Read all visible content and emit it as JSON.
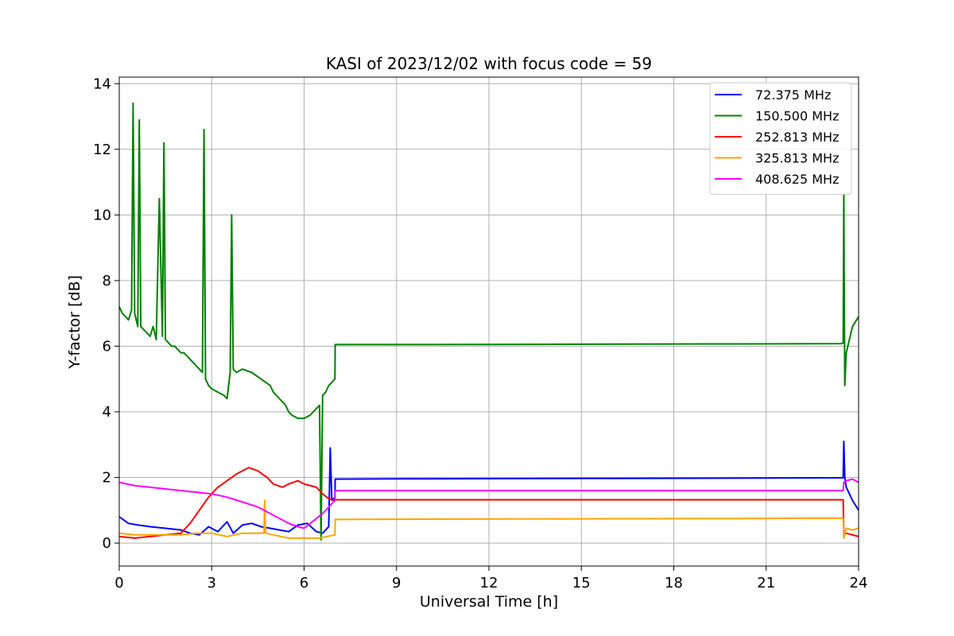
{
  "chart_data": {
    "type": "line",
    "title": "KASI of 2023/12/02 with focus code = 59",
    "xlabel": "Universal Time [h]",
    "ylabel": "Y-factor [dB]",
    "xlim": [
      0,
      24
    ],
    "ylim": [
      -0.7,
      14.2
    ],
    "xticks": [
      0,
      3,
      6,
      9,
      12,
      15,
      18,
      21,
      24
    ],
    "yticks": [
      0,
      2,
      4,
      6,
      8,
      10,
      12,
      14
    ],
    "grid": true,
    "legend_position": "top-right",
    "series": [
      {
        "name": " 72.375 MHz",
        "color": "#0000ff",
        "x": [
          0,
          0.3,
          0.6,
          1.0,
          1.5,
          2.0,
          2.3,
          2.6,
          2.9,
          3.2,
          3.5,
          3.7,
          4.0,
          4.3,
          4.6,
          4.9,
          5.2,
          5.5,
          5.8,
          6.1,
          6.4,
          6.6,
          6.8,
          6.85,
          6.9,
          7.0,
          7.01,
          10,
          15,
          20,
          23.5,
          23.52,
          23.55,
          23.6,
          23.7,
          23.8,
          24
        ],
        "y": [
          0.8,
          0.6,
          0.55,
          0.5,
          0.45,
          0.4,
          0.3,
          0.25,
          0.5,
          0.35,
          0.65,
          0.3,
          0.55,
          0.6,
          0.5,
          0.45,
          0.4,
          0.35,
          0.55,
          0.6,
          0.35,
          0.3,
          0.5,
          2.9,
          1.3,
          1.4,
          1.95,
          1.96,
          1.97,
          1.98,
          1.99,
          3.1,
          2.0,
          1.7,
          1.5,
          1.3,
          1.0
        ]
      },
      {
        "name": "150.500 MHz",
        "color": "#008000",
        "x": [
          0,
          0.1,
          0.2,
          0.3,
          0.4,
          0.45,
          0.5,
          0.6,
          0.65,
          0.7,
          0.8,
          0.9,
          1.0,
          1.1,
          1.2,
          1.3,
          1.4,
          1.45,
          1.5,
          1.6,
          1.7,
          1.8,
          1.9,
          2.0,
          2.1,
          2.2,
          2.3,
          2.4,
          2.5,
          2.6,
          2.7,
          2.75,
          2.8,
          2.9,
          3.0,
          3.2,
          3.4,
          3.5,
          3.6,
          3.65,
          3.7,
          3.8,
          4.0,
          4.3,
          4.6,
          4.9,
          5.0,
          5.2,
          5.4,
          5.5,
          5.6,
          5.8,
          6.0,
          6.2,
          6.3,
          6.4,
          6.5,
          6.55,
          6.6,
          6.7,
          6.8,
          6.9,
          7.0,
          7.01,
          10,
          15,
          20,
          23.45,
          23.5,
          23.52,
          23.55,
          23.6,
          23.7,
          23.8,
          24
        ],
        "y": [
          7.2,
          7.0,
          6.9,
          6.8,
          7.1,
          13.4,
          7.0,
          6.6,
          12.9,
          6.6,
          6.5,
          6.4,
          6.3,
          6.6,
          6.2,
          10.5,
          6.3,
          12.2,
          6.2,
          6.1,
          6.0,
          6.0,
          5.9,
          5.8,
          5.8,
          5.7,
          5.6,
          5.5,
          5.4,
          5.3,
          5.2,
          12.6,
          5.0,
          4.8,
          4.7,
          4.6,
          4.5,
          4.4,
          5.2,
          10.0,
          5.3,
          5.2,
          5.3,
          5.2,
          5.0,
          4.8,
          4.6,
          4.4,
          4.2,
          4.0,
          3.9,
          3.8,
          3.8,
          3.9,
          4.0,
          4.1,
          4.2,
          0.1,
          4.5,
          4.6,
          4.8,
          4.9,
          5.0,
          6.05,
          6.05,
          6.06,
          6.07,
          6.08,
          6.1,
          10.6,
          4.8,
          5.8,
          6.2,
          6.6,
          6.9
        ]
      },
      {
        "name": "252.813 MHz",
        "color": "#ff0000",
        "x": [
          0,
          0.5,
          1.0,
          1.5,
          2.0,
          2.3,
          2.6,
          2.9,
          3.2,
          3.5,
          3.8,
          4.0,
          4.2,
          4.5,
          4.8,
          5.0,
          5.3,
          5.5,
          5.8,
          6.0,
          6.2,
          6.4,
          6.6,
          6.8,
          7.0,
          7.01,
          10,
          15,
          20,
          23.5,
          23.52,
          23.6,
          23.8,
          24
        ],
        "y": [
          0.2,
          0.15,
          0.2,
          0.25,
          0.3,
          0.6,
          1.0,
          1.4,
          1.7,
          1.9,
          2.1,
          2.2,
          2.3,
          2.2,
          2.0,
          1.8,
          1.7,
          1.8,
          1.9,
          1.8,
          1.75,
          1.7,
          1.5,
          1.35,
          1.3,
          1.32,
          1.32,
          1.32,
          1.32,
          1.32,
          0.25,
          0.3,
          0.25,
          0.2
        ]
      },
      {
        "name": "325.813 MHz",
        "color": "#ffa500",
        "x": [
          0,
          0.5,
          1.0,
          1.5,
          2.0,
          2.5,
          3.0,
          3.5,
          4.0,
          4.5,
          4.7,
          4.72,
          4.75,
          5.0,
          5.5,
          6.0,
          6.5,
          7.0,
          7.01,
          10,
          15,
          20,
          23.5,
          23.52,
          23.6,
          23.8,
          24
        ],
        "y": [
          0.3,
          0.25,
          0.25,
          0.25,
          0.25,
          0.3,
          0.3,
          0.2,
          0.3,
          0.3,
          0.3,
          1.3,
          0.3,
          0.25,
          0.15,
          0.15,
          0.15,
          0.25,
          0.72,
          0.73,
          0.74,
          0.75,
          0.76,
          0.15,
          0.45,
          0.4,
          0.45
        ]
      },
      {
        "name": "408.625 MHz",
        "color": "#ff00ff",
        "x": [
          0,
          0.5,
          1.0,
          1.5,
          2.0,
          2.5,
          3.0,
          3.5,
          4.0,
          4.5,
          5.0,
          5.5,
          5.8,
          6.0,
          6.2,
          6.4,
          6.6,
          6.8,
          7.0,
          7.01,
          10,
          15,
          20,
          23.5,
          23.52,
          23.6,
          23.8,
          24
        ],
        "y": [
          1.85,
          1.75,
          1.7,
          1.65,
          1.6,
          1.55,
          1.5,
          1.4,
          1.25,
          1.1,
          0.85,
          0.6,
          0.5,
          0.45,
          0.6,
          0.75,
          0.9,
          1.1,
          1.3,
          1.6,
          1.6,
          1.6,
          1.6,
          1.6,
          1.85,
          1.9,
          1.95,
          1.85
        ]
      }
    ]
  }
}
